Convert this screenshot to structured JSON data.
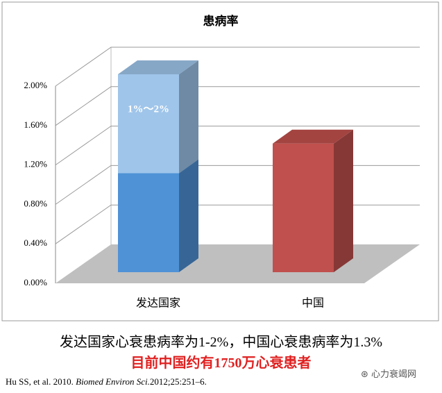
{
  "chart_data": {
    "type": "bar",
    "title": "患病率",
    "categories": [
      "发达国家",
      "中国"
    ],
    "series": [
      {
        "values": [
          1,
          1.3
        ],
        "colors": [
          "#4f92d6",
          "#c0504d"
        ]
      },
      {
        "values": [
          1,
          null
        ],
        "colors": [
          "#9fc5ea",
          "#9fc5ea"
        ]
      }
    ],
    "annotations": [
      "1%～2%"
    ],
    "ylim": [
      0,
      2
    ],
    "yticks": [
      {
        "value": 0,
        "label": "0.00%"
      },
      {
        "value": 0.4,
        "label": "0.40%"
      },
      {
        "value": 0.8,
        "label": "0.80%"
      },
      {
        "value": 1.2,
        "label": "1.20%"
      },
      {
        "value": 1.6,
        "label": "1.60%"
      },
      {
        "value": 2,
        "label": "2.00%"
      }
    ],
    "grid": true
  },
  "captions": {
    "summary": "发达国家心衰患病率为1-2%，中国心衰患病率为1.3%",
    "highlight": "目前中国约有1750万心衰患者"
  },
  "reference": {
    "authors": "Hu SS, et al. 2010. ",
    "journal": "Biomed Environ Sci.",
    "details": "2012;25:251–6."
  },
  "watermark": "心力衰竭网"
}
